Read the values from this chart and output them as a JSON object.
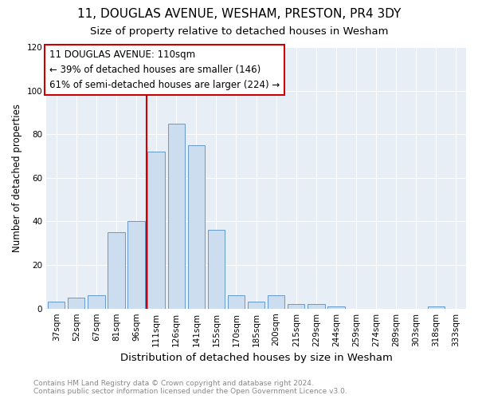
{
  "title1": "11, DOUGLAS AVENUE, WESHAM, PRESTON, PR4 3DY",
  "title2": "Size of property relative to detached houses in Wesham",
  "xlabel": "Distribution of detached houses by size in Wesham",
  "ylabel": "Number of detached properties",
  "categories": [
    "37sqm",
    "52sqm",
    "67sqm",
    "81sqm",
    "96sqm",
    "111sqm",
    "126sqm",
    "141sqm",
    "155sqm",
    "170sqm",
    "185sqm",
    "200sqm",
    "215sqm",
    "229sqm",
    "244sqm",
    "259sqm",
    "274sqm",
    "289sqm",
    "303sqm",
    "318sqm",
    "333sqm"
  ],
  "values": [
    3,
    5,
    6,
    35,
    40,
    72,
    85,
    75,
    36,
    6,
    3,
    6,
    2,
    2,
    1,
    0,
    0,
    0,
    0,
    1,
    0
  ],
  "bar_color": "#ccddf0",
  "bar_edge_color": "#6699cc",
  "vline_color": "#cc0000",
  "vline_x": 4.5,
  "annotation_line1": "11 DOUGLAS AVENUE: 110sqm",
  "annotation_line2": "← 39% of detached houses are smaller (146)",
  "annotation_line3": "61% of semi-detached houses are larger (224) →",
  "annotation_box_color": "#cc0000",
  "ylim": [
    0,
    120
  ],
  "yticks": [
    0,
    20,
    40,
    60,
    80,
    100,
    120
  ],
  "background_color": "#e8eef5",
  "grid_color": "#ffffff",
  "footer_line1": "Contains HM Land Registry data © Crown copyright and database right 2024.",
  "footer_line2": "Contains public sector information licensed under the Open Government Licence v3.0.",
  "title1_fontsize": 11,
  "title2_fontsize": 9.5,
  "xlabel_fontsize": 9.5,
  "ylabel_fontsize": 8.5,
  "tick_fontsize": 7.5,
  "annotation_fontsize": 8.5,
  "footer_fontsize": 6.5
}
